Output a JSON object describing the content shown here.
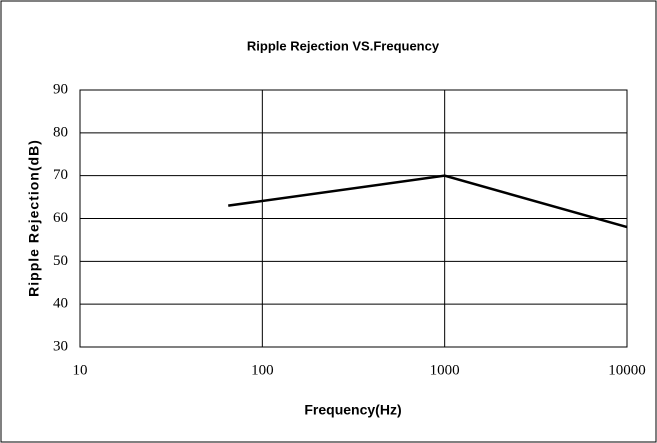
{
  "chart_data": {
    "type": "line",
    "title": "Ripple Rejection VS.Frequency",
    "x_label": "Frequency(Hz)",
    "y_label": "Ripple Rejection(dB)",
    "x": [
      65,
      1000,
      10000
    ],
    "series": [
      {
        "name": "Ripple Rejection",
        "color": "#000000",
        "values": [
          63,
          70,
          58
        ]
      }
    ],
    "xscale": "log",
    "xlim": [
      10,
      10000
    ],
    "xticks": [
      10,
      100,
      1000,
      10000
    ],
    "ylim": [
      30,
      90
    ],
    "yticks": [
      30,
      40,
      50,
      60,
      70,
      80,
      90
    ],
    "grid": true
  }
}
